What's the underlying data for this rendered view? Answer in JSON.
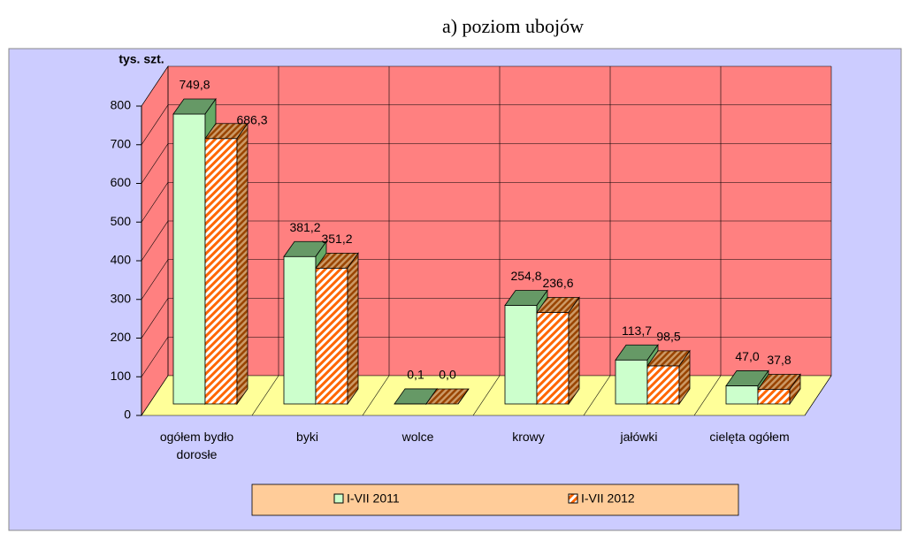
{
  "chart_data": {
    "type": "bar3d",
    "title": "a) poziom ubojów",
    "y_label": "tys. szt.",
    "categories": [
      "ogółem bydło dorosłe",
      "byki",
      "wolce",
      "krowy",
      "jałówki",
      "cielęta ogółem"
    ],
    "series": [
      {
        "name": "I-VII 2011",
        "color": "#ccffcc",
        "values": [
          749.8,
          381.2,
          0.1,
          254.8,
          113.7,
          47.0
        ],
        "value_labels": [
          "749,8",
          "381,2",
          "0,1",
          "254,8",
          "113,7",
          "47,0"
        ]
      },
      {
        "name": "I-VII 2012",
        "color": "#ff6600",
        "values": [
          686.3,
          351.2,
          0.0,
          236.6,
          98.5,
          37.8
        ],
        "value_labels": [
          "686,3",
          "351,2",
          "0,0",
          "236,6",
          "98,5",
          "37,8"
        ]
      }
    ],
    "ylim": [
      0,
      800
    ],
    "yticks": [
      0,
      100,
      200,
      300,
      400,
      500,
      600,
      700,
      800
    ],
    "grid": true,
    "legend": "bottom"
  }
}
